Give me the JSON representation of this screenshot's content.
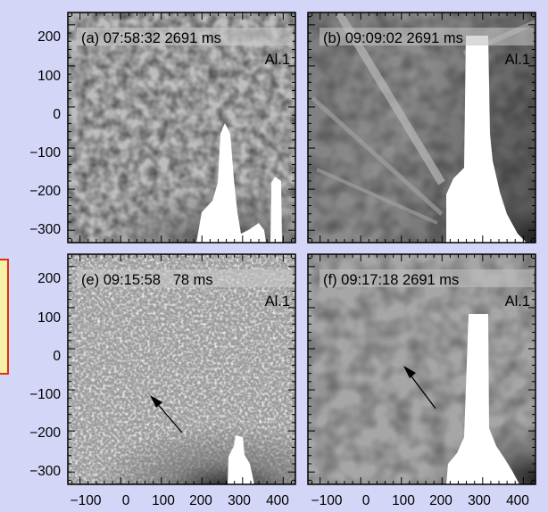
{
  "figure": {
    "panels": [
      {
        "label": "(a) 07:58:32 2691 ms",
        "instrument": "Al.1",
        "style": "mottled"
      },
      {
        "label": "(b) 09:09:02 2691 ms",
        "instrument": "Al.1",
        "style": "streaks"
      },
      {
        "label": "(e) 09:15:58   78 ms",
        "instrument": "Al.1",
        "style": "noisy"
      },
      {
        "label": "(f) 09:17:18 2691 ms",
        "instrument": "Al.1",
        "style": "smooth"
      }
    ],
    "y_ticks": [
      "200",
      "100",
      "0",
      "−100",
      "−200",
      "−300"
    ],
    "x_ticks": [
      "−100",
      "0",
      "100",
      "200",
      "300",
      "400"
    ],
    "arrow_icon": "arrow-up-left-icon",
    "colors": {
      "background": "#d4d6f8",
      "frame": "#000000",
      "saturated": "#ffffff",
      "side_box_border": "#e03010",
      "side_box_fill": "#f7f2a8"
    }
  }
}
